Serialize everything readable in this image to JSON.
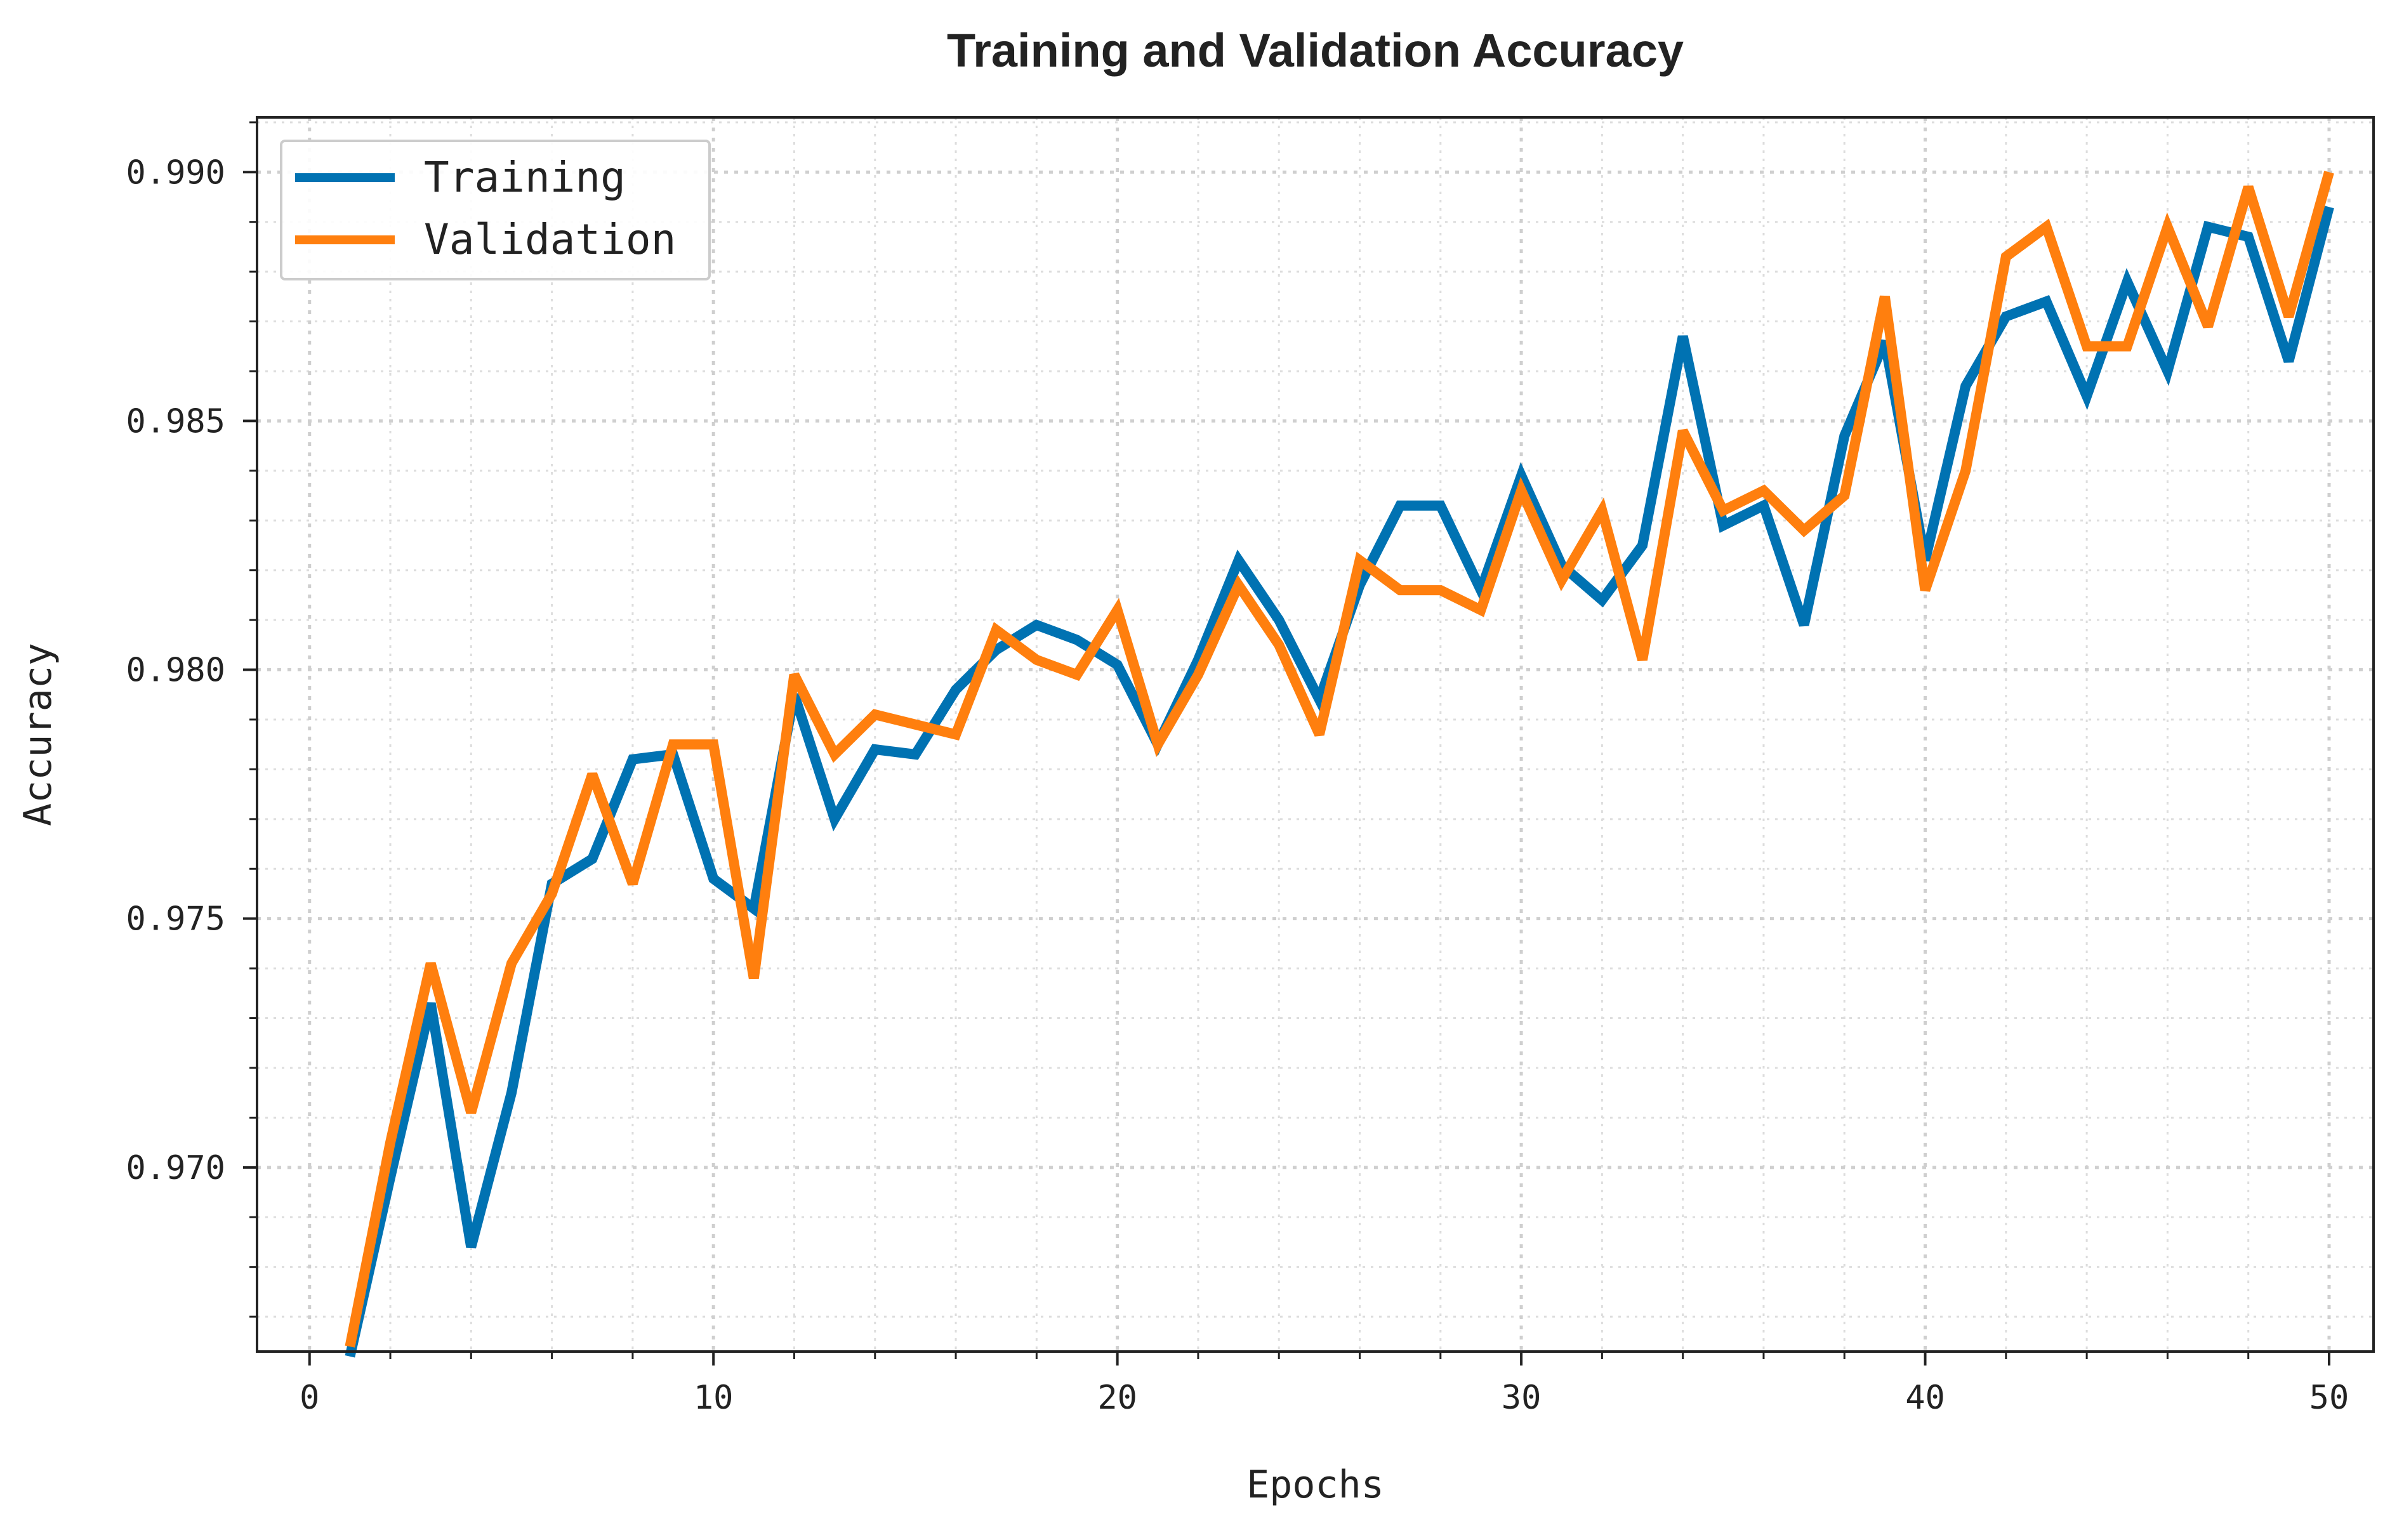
{
  "chart_data": {
    "type": "line",
    "title": "Training and Validation Accuracy",
    "xlabel": "Epochs",
    "ylabel": "Accuracy",
    "xlim": [
      -1.3,
      51.1
    ],
    "ylim": [
      0.9663,
      0.9911
    ],
    "xticks": [
      0,
      10,
      20,
      30,
      40,
      50
    ],
    "xtick_labels": [
      "0",
      "10",
      "20",
      "30",
      "40",
      "50"
    ],
    "yticks": [
      0.97,
      0.975,
      0.98,
      0.985,
      0.99
    ],
    "ytick_labels": [
      "0.970",
      "0.975",
      "0.980",
      "0.985",
      "0.990"
    ],
    "grid": true,
    "legend_position": "top-left",
    "x": [
      1,
      2,
      3,
      4,
      5,
      6,
      7,
      8,
      9,
      10,
      11,
      12,
      13,
      14,
      15,
      16,
      17,
      18,
      19,
      20,
      21,
      22,
      23,
      24,
      25,
      26,
      27,
      28,
      29,
      30,
      31,
      32,
      33,
      34,
      35,
      36,
      37,
      38,
      39,
      40,
      41,
      42,
      43,
      44,
      45,
      46,
      47,
      48,
      49,
      50
    ],
    "series": [
      {
        "name": "Training",
        "color": "#0072B2",
        "values": [
          0.9662,
          0.9698,
          0.9733,
          0.9684,
          0.9715,
          0.9757,
          0.9762,
          0.9782,
          0.9783,
          0.9758,
          0.9752,
          0.9795,
          0.977,
          0.9784,
          0.9783,
          0.9796,
          0.9804,
          0.9809,
          0.9806,
          0.9801,
          0.9785,
          0.9802,
          0.9822,
          0.981,
          0.9794,
          0.9817,
          0.9833,
          0.9833,
          0.9816,
          0.9839,
          0.9821,
          0.9814,
          0.9825,
          0.9867,
          0.9829,
          0.9833,
          0.9809,
          0.9847,
          0.9866,
          0.9822,
          0.9857,
          0.9871,
          0.9874,
          0.9855,
          0.9878,
          0.986,
          0.9889,
          0.9887,
          0.9862,
          0.9893
        ]
      },
      {
        "name": "Validation",
        "color": "#FF7F0E",
        "values": [
          0.9664,
          0.9705,
          0.9741,
          0.9711,
          0.9741,
          0.9755,
          0.9779,
          0.9757,
          0.9785,
          0.9785,
          0.9738,
          0.9799,
          0.9783,
          0.9791,
          0.9789,
          0.9787,
          0.9808,
          0.9802,
          0.9799,
          0.9812,
          0.9785,
          0.9799,
          0.9817,
          0.9805,
          0.9787,
          0.9822,
          0.9816,
          0.9816,
          0.9812,
          0.9836,
          0.9818,
          0.9832,
          0.9802,
          0.9848,
          0.9832,
          0.9836,
          0.9828,
          0.9835,
          0.9875,
          0.9816,
          0.984,
          0.9883,
          0.9889,
          0.9865,
          0.9865,
          0.9889,
          0.9869,
          0.9897,
          0.9871,
          0.99
        ]
      }
    ]
  }
}
